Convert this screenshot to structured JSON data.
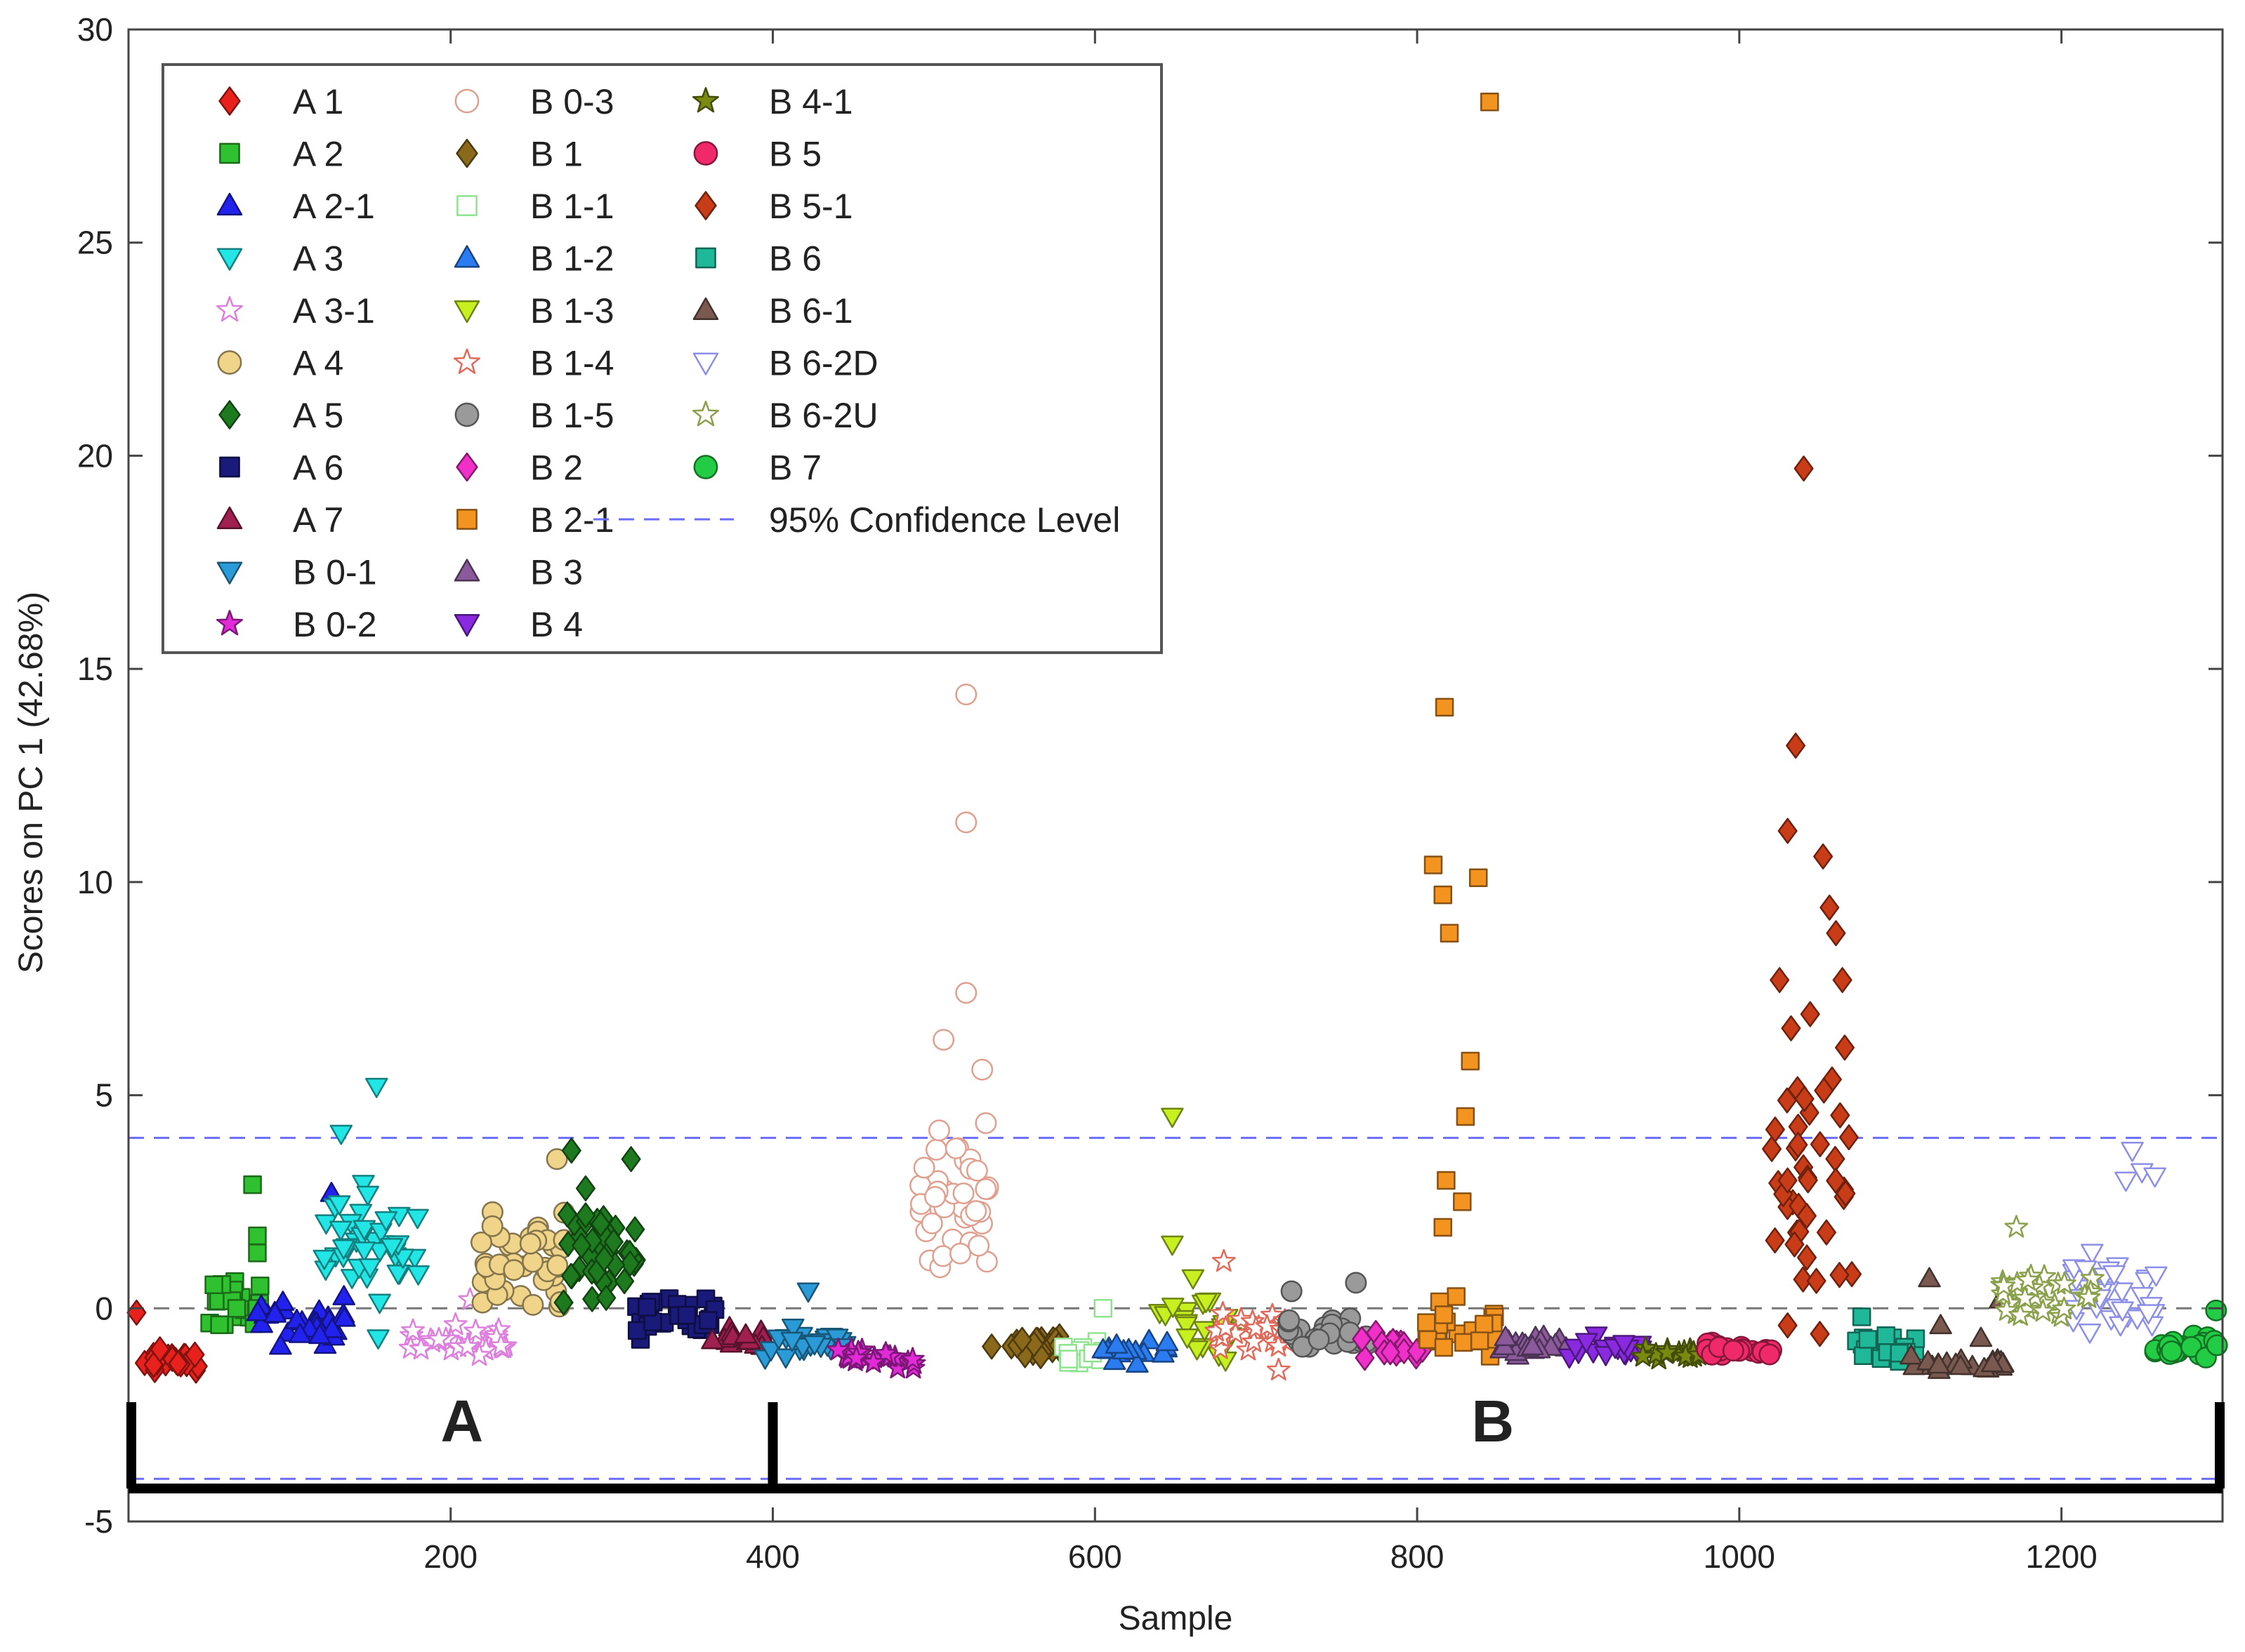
{
  "chart_data": {
    "type": "scatter",
    "title": "",
    "xlabel": "Sample",
    "ylabel": "Scores on PC 1 (42.68%)",
    "xlim": [
      0,
      1300
    ],
    "ylim": [
      -5,
      30
    ],
    "xticks": [
      200,
      400,
      600,
      800,
      1000,
      1200
    ],
    "yticks": [
      -5,
      0,
      5,
      10,
      15,
      20,
      25,
      30
    ],
    "confidence_level": {
      "label": "95% Confidence Level",
      "upper": 4.0,
      "lower": -4.0,
      "color": "#6b6bff"
    },
    "zero_line": 0,
    "group_labels": [
      {
        "text": "A",
        "x_start": 0,
        "x_end": 400,
        "x_center": 207
      },
      {
        "text": "B",
        "x_start": 400,
        "x_end": 1300,
        "x_center": 847
      }
    ],
    "legend_position": "top-left",
    "series": [
      {
        "name": "A 1",
        "marker": "diamond",
        "color": "#e8211d",
        "filled": true,
        "x_range": [
          5,
          50
        ],
        "y_mean": -1.25,
        "y_spread": 0.25,
        "count": 24,
        "extra": [
          [
            5,
            -0.1
          ]
        ]
      },
      {
        "name": "A 2",
        "marker": "square",
        "color": "#2fc12f",
        "filled": true,
        "x_range": [
          47,
          82
        ],
        "y_mean": 0.1,
        "y_spread": 0.6,
        "count": 22,
        "extra": [
          [
            77,
            2.9
          ],
          [
            80,
            1.7
          ],
          [
            80,
            1.3
          ]
        ]
      },
      {
        "name": "A 2-1",
        "marker": "triangle-up",
        "color": "#2222ee",
        "filled": true,
        "x_range": [
          80,
          135
        ],
        "y_mean": -0.3,
        "y_spread": 0.5,
        "count": 32,
        "extra": [
          [
            126,
            2.7
          ]
        ]
      },
      {
        "name": "A 3",
        "marker": "triangle-down",
        "color": "#22e6e6",
        "filled": true,
        "x_range": [
          120,
          180
        ],
        "y_mean": 1.5,
        "y_spread": 1.3,
        "count": 40,
        "extra": [
          [
            132,
            4.1
          ],
          [
            154,
            5.2
          ],
          [
            155,
            -0.7
          ]
        ]
      },
      {
        "name": "A 3-1",
        "marker": "star",
        "color": "#dd7fdd",
        "filled": false,
        "x_range": [
          175,
          235
        ],
        "y_mean": -0.8,
        "y_spread": 0.35,
        "count": 30,
        "extra": [
          [
            212,
            0.2
          ]
        ]
      },
      {
        "name": "A 4",
        "marker": "circle",
        "color": "#f0d48a",
        "filled": true,
        "x_range": [
          218,
          272
        ],
        "y_mean": 1.2,
        "y_spread": 1.0,
        "count": 40,
        "extra": [
          [
            266,
            3.5
          ]
        ]
      },
      {
        "name": "A 5",
        "marker": "diamond",
        "color": "#1e7a1e",
        "filled": true,
        "x_range": [
          270,
          318
        ],
        "y_mean": 1.3,
        "y_spread": 1.4,
        "count": 40,
        "extra": [
          [
            275,
            3.7
          ],
          [
            312,
            3.5
          ]
        ]
      },
      {
        "name": "A 6",
        "marker": "square",
        "color": "#1a1a7a",
        "filled": true,
        "x_range": [
          315,
          365
        ],
        "y_mean": -0.1,
        "y_spread": 0.55,
        "count": 32
      },
      {
        "name": "A 7",
        "marker": "triangle-up",
        "color": "#a02050",
        "filled": true,
        "x_range": [
          360,
          395
        ],
        "y_mean": -0.7,
        "y_spread": 0.3,
        "count": 16
      },
      {
        "name": "B 0-1",
        "marker": "triangle-down",
        "color": "#2b9bd8",
        "filled": true,
        "x_range": [
          395,
          445
        ],
        "y_mean": -0.85,
        "y_spread": 0.3,
        "count": 26,
        "extra": [
          [
            422,
            0.4
          ]
        ]
      },
      {
        "name": "B 0-2",
        "marker": "star",
        "color": "#e22ad8",
        "filled": true,
        "x_range": [
          440,
          490
        ],
        "y_mean": -1.15,
        "y_spread": 0.2,
        "count": 26
      },
      {
        "name": "B 0-3",
        "marker": "circle",
        "color": "#e0a090",
        "filled": false,
        "x_range": [
          490,
          535
        ],
        "y_mean": 2.6,
        "y_spread": 1.9,
        "count": 40,
        "extra": [
          [
            520,
            14.4
          ],
          [
            520,
            11.4
          ],
          [
            520,
            7.4
          ],
          [
            506,
            6.3
          ],
          [
            530,
            5.6
          ]
        ]
      },
      {
        "name": "B 1",
        "marker": "diamond",
        "color": "#8a6a1a",
        "filled": true,
        "x_range": [
          535,
          585
        ],
        "y_mean": -0.85,
        "y_spread": 0.25,
        "count": 24
      },
      {
        "name": "B 1-1",
        "marker": "square",
        "color": "#8ee38e",
        "filled": false,
        "x_range": [
          580,
          610
        ],
        "y_mean": -1.05,
        "y_spread": 0.3,
        "count": 14,
        "extra": [
          [
            605,
            0.0
          ]
        ]
      },
      {
        "name": "B 1-2",
        "marker": "triangle-up",
        "color": "#2a7cf0",
        "filled": true,
        "x_range": [
          605,
          645
        ],
        "y_mean": -1.05,
        "y_spread": 0.3,
        "count": 18
      },
      {
        "name": "B 1-3",
        "marker": "triangle-down",
        "color": "#c8f020",
        "filled": true,
        "x_range": [
          640,
          685
        ],
        "y_mean": -0.3,
        "y_spread": 0.9,
        "count": 26,
        "extra": [
          [
            648,
            4.5
          ],
          [
            648,
            1.5
          ]
        ]
      },
      {
        "name": "B 1-4",
        "marker": "star",
        "color": "#e06a5a",
        "filled": false,
        "x_range": [
          675,
          720
        ],
        "y_mean": -0.6,
        "y_spread": 0.45,
        "count": 26,
        "extra": [
          [
            680,
            1.1
          ],
          [
            714,
            -1.45
          ]
        ]
      },
      {
        "name": "B 1-5",
        "marker": "circle",
        "color": "#9a9a9a",
        "filled": true,
        "x_range": [
          715,
          770
        ],
        "y_mean": -0.65,
        "y_spread": 0.35,
        "count": 28,
        "extra": [
          [
            762,
            0.6
          ],
          [
            722,
            0.4
          ]
        ]
      },
      {
        "name": "B 2",
        "marker": "diamond",
        "color": "#f030c8",
        "filled": true,
        "x_range": [
          765,
          805
        ],
        "y_mean": -0.95,
        "y_spread": 0.3,
        "count": 22
      },
      {
        "name": "B 2-1",
        "marker": "square",
        "color": "#f39320",
        "filled": true,
        "x_range": [
          805,
          850
        ],
        "y_mean": -0.6,
        "y_spread": 0.7,
        "count": 28,
        "extra": [
          [
            845,
            28.3
          ],
          [
            817,
            14.1
          ],
          [
            810,
            10.4
          ],
          [
            838,
            10.1
          ],
          [
            816,
            9.7
          ],
          [
            820,
            8.8
          ],
          [
            833,
            5.8
          ],
          [
            830,
            4.5
          ],
          [
            818,
            3.0
          ],
          [
            828,
            2.5
          ],
          [
            816,
            1.9
          ]
        ]
      },
      {
        "name": "B 3",
        "marker": "triangle-up",
        "color": "#8a5a9a",
        "filled": true,
        "x_range": [
          850,
          895
        ],
        "y_mean": -0.85,
        "y_spread": 0.25,
        "count": 22
      },
      {
        "name": "B 4",
        "marker": "triangle-down",
        "color": "#8a2ae0",
        "filled": true,
        "x_range": [
          892,
          940
        ],
        "y_mean": -0.95,
        "y_spread": 0.25,
        "count": 22
      },
      {
        "name": "B 4-1",
        "marker": "star",
        "color": "#7a8a10",
        "filled": true,
        "x_range": [
          938,
          975
        ],
        "y_mean": -1.0,
        "y_spread": 0.2,
        "count": 18
      },
      {
        "name": "B 5",
        "marker": "circle",
        "color": "#f02a6a",
        "filled": true,
        "x_range": [
          972,
          1022
        ],
        "y_mean": -0.95,
        "y_spread": 0.15,
        "count": 24
      },
      {
        "name": "B 5-1",
        "marker": "diamond",
        "color": "#c83c18",
        "filled": true,
        "x_range": [
          1020,
          1070
        ],
        "y_mean": 3.0,
        "y_spread": 3.2,
        "count": 40,
        "extra": [
          [
            1040,
            19.7
          ],
          [
            1035,
            13.2
          ],
          [
            1030,
            11.2
          ],
          [
            1052,
            10.6
          ],
          [
            1056,
            9.4
          ],
          [
            1060,
            8.8
          ],
          [
            1025,
            7.7
          ],
          [
            1064,
            7.7
          ],
          [
            1044,
            6.9
          ],
          [
            1030,
            3.0
          ],
          [
            1030,
            -0.4
          ],
          [
            1050,
            -0.6
          ]
        ]
      },
      {
        "name": "B 6",
        "marker": "square",
        "color": "#1fb898",
        "filled": true,
        "x_range": [
          1070,
          1110
        ],
        "y_mean": -0.95,
        "y_spread": 0.25,
        "count": 20,
        "extra": [
          [
            1076,
            -0.2
          ]
        ]
      },
      {
        "name": "B 6-1",
        "marker": "triangle-up",
        "color": "#7a5a50",
        "filled": true,
        "x_range": [
          1105,
          1165
        ],
        "y_mean": -1.3,
        "y_spread": 0.15,
        "count": 24,
        "extra": [
          [
            1118,
            0.7
          ],
          [
            1162,
            0.2
          ],
          [
            1125,
            -0.4
          ],
          [
            1150,
            -0.7
          ]
        ]
      },
      {
        "name": "B 6-2D",
        "marker": "triangle-down",
        "color": "#8d8fe6",
        "filled": false,
        "x_range": [
          1205,
          1260
        ],
        "y_mean": 0.3,
        "y_spread": 0.9,
        "count": 36,
        "extra": [
          [
            1244,
            3.7
          ],
          [
            1250,
            3.2
          ],
          [
            1240,
            3.0
          ],
          [
            1258,
            3.1
          ]
        ]
      },
      {
        "name": "B 6-2U",
        "marker": "star",
        "color": "#8aa04a",
        "filled": false,
        "x_range": [
          1160,
          1220
        ],
        "y_mean": 0.3,
        "y_spread": 0.5,
        "count": 36,
        "extra": [
          [
            1172,
            1.9
          ]
        ]
      },
      {
        "name": "B 7",
        "marker": "circle",
        "color": "#22cc44",
        "filled": true,
        "x_range": [
          1258,
          1298
        ],
        "y_mean": -0.9,
        "y_spread": 0.25,
        "count": 24,
        "extra": [
          [
            1296,
            -0.05
          ]
        ]
      }
    ]
  }
}
